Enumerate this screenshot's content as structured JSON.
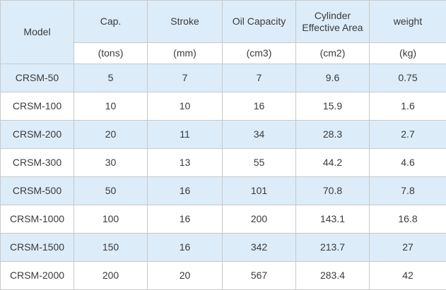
{
  "table": {
    "model_header": "Model",
    "columns": [
      {
        "name": "Cap.",
        "unit": "(tons)"
      },
      {
        "name": "Stroke",
        "unit": "(mm)"
      },
      {
        "name": "Oil Capacity",
        "unit": "(cm3)"
      },
      {
        "name_line1": "Cylinder",
        "name_line2": "Effective Area",
        "unit": "(cm2)"
      },
      {
        "name": "weight",
        "unit": "(kg)"
      }
    ],
    "rows": [
      {
        "model": "CRSM-50",
        "cap": "5",
        "stroke": "7",
        "oil": "7",
        "area": "9.6",
        "weight": "0.75"
      },
      {
        "model": "CRSM-100",
        "cap": "10",
        "stroke": "10",
        "oil": "16",
        "area": "15.9",
        "weight": "1.6"
      },
      {
        "model": "CRSM-200",
        "cap": "20",
        "stroke": "11",
        "oil": "34",
        "area": "28.3",
        "weight": "2.7"
      },
      {
        "model": "CRSM-300",
        "cap": "30",
        "stroke": "13",
        "oil": "55",
        "area": "44.2",
        "weight": "4.6"
      },
      {
        "model": "CRSM-500",
        "cap": "50",
        "stroke": "16",
        "oil": "101",
        "area": "70.8",
        "weight": "7.8"
      },
      {
        "model": "CRSM-1000",
        "cap": "100",
        "stroke": "16",
        "oil": "200",
        "area": "143.1",
        "weight": "16.8"
      },
      {
        "model": "CRSM-1500",
        "cap": "150",
        "stroke": "16",
        "oil": "342",
        "area": "213.7",
        "weight": "27"
      },
      {
        "model": "CRSM-2000",
        "cap": "200",
        "stroke": "20",
        "oil": "567",
        "area": "283.4",
        "weight": "42"
      }
    ],
    "colors": {
      "header_bg": "#dcecf9",
      "alt_row_bg": "#dcecf9",
      "plain_row_bg": "#ffffff",
      "border": "#c9c9c9",
      "text": "#3a3a3a"
    }
  }
}
